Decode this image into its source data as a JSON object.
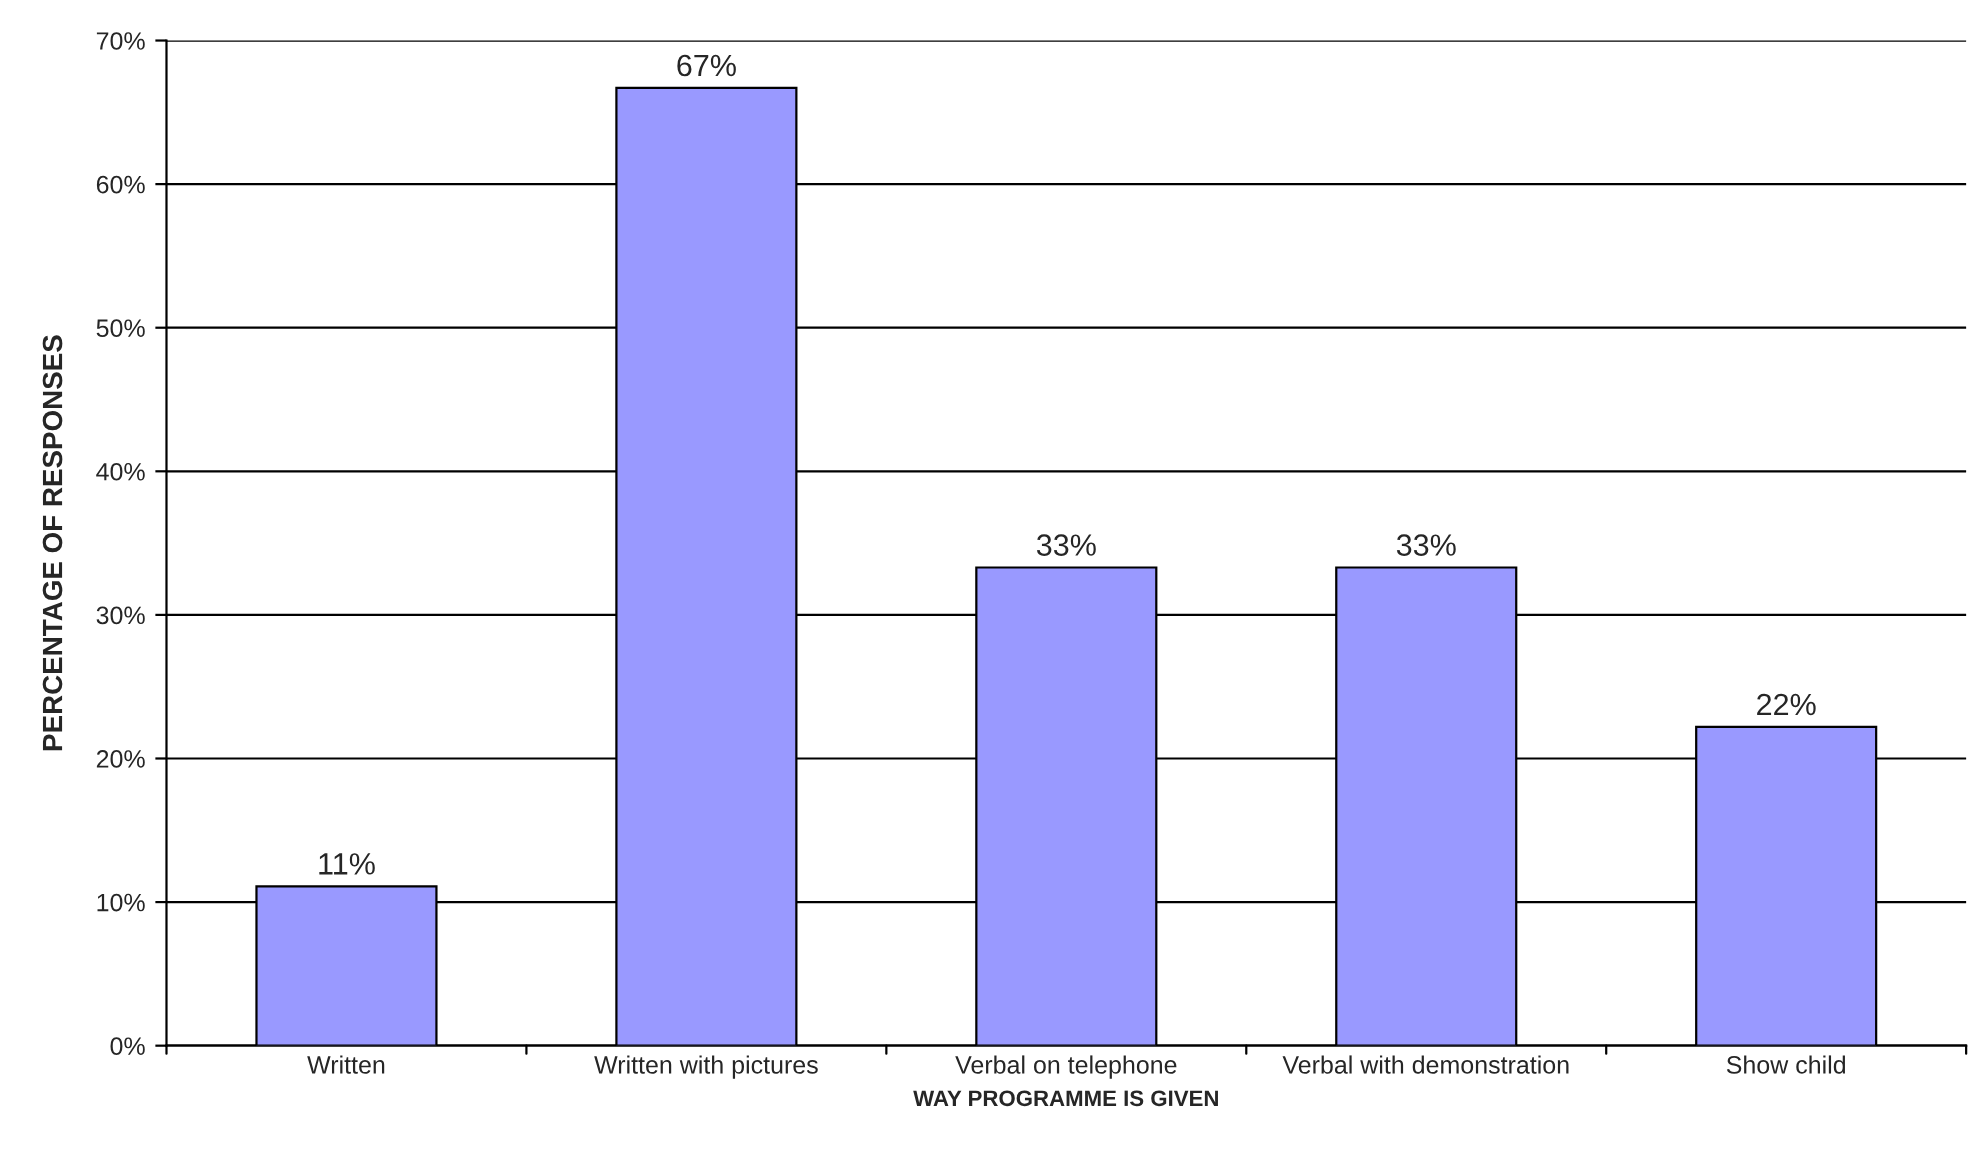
{
  "chart_data": {
    "type": "bar",
    "xlabel": "WAY PROGRAMME IS GIVEN",
    "ylabel": "PERCENTAGE OF RESPONSES",
    "categories": [
      "Written",
      "Written with pictures",
      "Verbal on telephone",
      "Verbal with demonstration",
      "Show child"
    ],
    "values": [
      11.1,
      66.7,
      33.3,
      33.3,
      22.2
    ],
    "value_labels": [
      "11%",
      "67%",
      "33%",
      "33%",
      "22%"
    ],
    "color": "#9999ff",
    "ylim": [
      0,
      70
    ],
    "yticks": [
      {
        "value": 0,
        "label": "0%"
      },
      {
        "value": 10,
        "label": "10%"
      },
      {
        "value": 20,
        "label": "20%"
      },
      {
        "value": 30,
        "label": "30%"
      },
      {
        "value": 40,
        "label": "40%"
      },
      {
        "value": 50,
        "label": "50%"
      },
      {
        "value": 60,
        "label": "60%"
      },
      {
        "value": 70,
        "label": "70%"
      }
    ],
    "grid": "y",
    "legend": false
  }
}
